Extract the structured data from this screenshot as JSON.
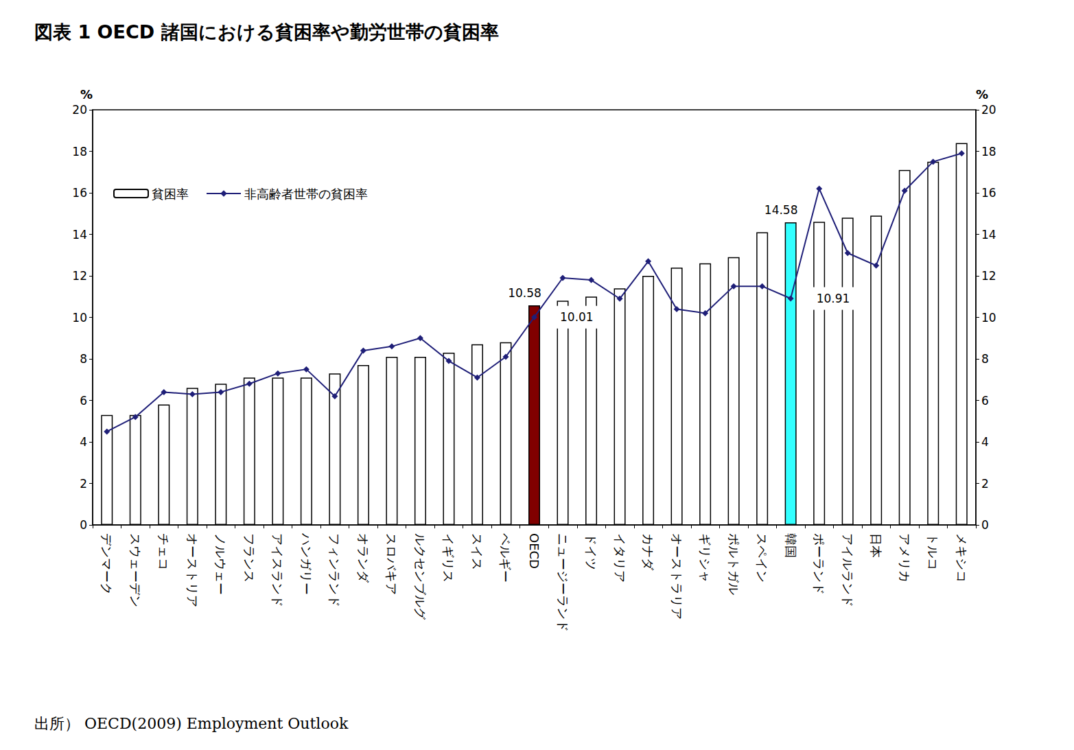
{
  "chart_data": {
    "type": "bar",
    "title": "図表 1 OECD 諸国における貧困率や勤労世帯の貧困率",
    "source": "出所） OECD(2009) Employment Outlook",
    "ylabel": "%",
    "y2label": "%",
    "categories": [
      "デンマーク",
      "スウェーデン",
      "チェコ",
      "オーストリア",
      "ノルウェー",
      "フランス",
      "アイスランド",
      "ハンガリー",
      "フィンランド",
      "オランダ",
      "スロバキア",
      "ルクセンブルグ",
      "イギリス",
      "スイス",
      "ベルギー",
      "OECD",
      "ニュージーランド",
      "ドイツ",
      "イタリア",
      "カナダ",
      "オーストラリア",
      "ギリシャ",
      "ポルトガル",
      "スペイン",
      "韓国",
      "ポーランド",
      "アイルランド",
      "日本",
      "アメリカ",
      "トルコ",
      "メキシコ"
    ],
    "series": [
      {
        "name": "貧困率",
        "type": "bar",
        "color": "#ffffff",
        "colors": [
          "#ffffff",
          "#ffffff",
          "#ffffff",
          "#ffffff",
          "#ffffff",
          "#ffffff",
          "#ffffff",
          "#ffffff",
          "#ffffff",
          "#ffffff",
          "#ffffff",
          "#ffffff",
          "#ffffff",
          "#ffffff",
          "#ffffff",
          "#800000",
          "#ffffff",
          "#ffffff",
          "#ffffff",
          "#ffffff",
          "#ffffff",
          "#ffffff",
          "#ffffff",
          "#ffffff",
          "#33ffff",
          "#ffffff",
          "#ffffff",
          "#ffffff",
          "#ffffff",
          "#ffffff",
          "#ffffff"
        ],
        "values": [
          5.3,
          5.3,
          5.8,
          6.6,
          6.8,
          7.1,
          7.1,
          7.1,
          7.3,
          7.7,
          8.1,
          8.1,
          8.3,
          8.7,
          8.8,
          10.58,
          10.8,
          11.0,
          11.4,
          12.0,
          12.4,
          12.6,
          12.9,
          14.1,
          14.58,
          14.6,
          14.8,
          14.9,
          17.1,
          17.5,
          18.4
        ]
      },
      {
        "name": "非高齢者世帯の貧困率",
        "type": "line",
        "axis": "y2",
        "color": "#1f1f78",
        "marker": "diamond",
        "line_style": "solid",
        "values": [
          4.5,
          5.2,
          6.4,
          6.3,
          6.4,
          6.8,
          7.3,
          7.5,
          6.2,
          8.4,
          8.6,
          9.0,
          7.9,
          7.1,
          8.1,
          10.01,
          11.9,
          11.8,
          10.9,
          12.7,
          10.4,
          10.2,
          11.5,
          11.5,
          10.91,
          16.2,
          13.1,
          12.5,
          16.1,
          17.5,
          17.9
        ]
      }
    ],
    "annotations": [
      {
        "text": "10.58",
        "category": "OECD",
        "series": "貧困率"
      },
      {
        "text": "10.01",
        "category": "OECD",
        "series": "非高齢者世帯の貧困率"
      },
      {
        "text": "14.58",
        "category": "韓国",
        "series": "貧困率"
      },
      {
        "text": "10.91",
        "category": "韓国",
        "series": "非高齢者世帯の貧困率"
      }
    ],
    "ylim": [
      0,
      20
    ],
    "yticks": [
      0,
      2,
      4,
      6,
      8,
      10,
      12,
      14,
      16,
      18,
      20
    ],
    "y2lim": [
      0,
      20
    ],
    "y2ticks": [
      0,
      2,
      4,
      6,
      8,
      10,
      12,
      14,
      16,
      18,
      20
    ],
    "grid": false,
    "legend": "upper left",
    "data_labels": false
  }
}
